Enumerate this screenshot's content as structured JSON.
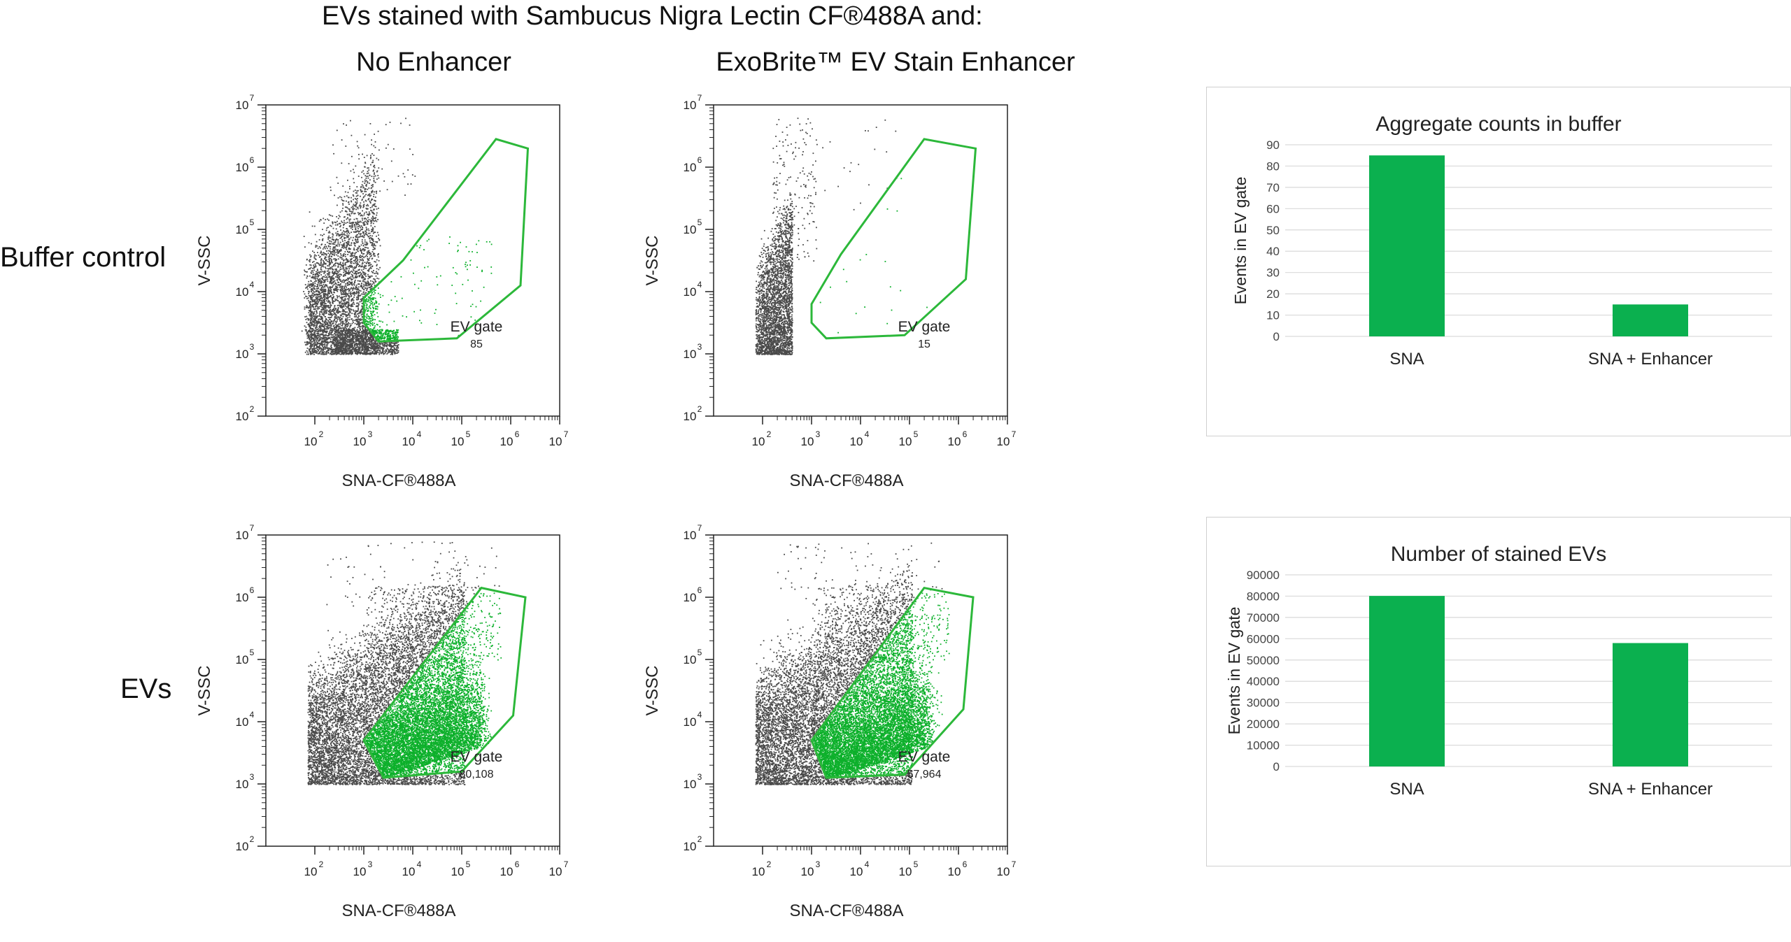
{
  "figure": {
    "title": "EVs stained with Sambucus Nigra Lectin CF®488A and:",
    "columns": [
      "No Enhancer",
      "ExoBrite™ EV Stain Enhancer"
    ],
    "rows": [
      "Buffer control",
      "EVs"
    ]
  },
  "colors": {
    "gate": "#2cb83a",
    "dots_gray": "#4a4a4a",
    "dots_green": "#0db02b",
    "bar": "#0bb04f",
    "grid": "#d9d9d9"
  },
  "chart_data": [
    {
      "type": "scatter",
      "id": "buffer-no-enhancer",
      "xlabel": "SNA-CF®488A",
      "ylabel": "V-SSC",
      "x_scale": "log",
      "y_scale": "log",
      "xlim": [
        10,
        10000000
      ],
      "ylim": [
        100,
        10000000
      ],
      "x_tick_exponents": [
        "2",
        "3",
        "4",
        "5",
        "6",
        "7"
      ],
      "y_tick_exponents": [
        "2",
        "3",
        "4",
        "5",
        "6",
        "7"
      ],
      "tick_base": "10",
      "gate_label": "EV gate",
      "gate_count": "85",
      "gate_polygon_log": [
        [
          3.0,
          3.5
        ],
        [
          3.3,
          3.2
        ],
        [
          4.9,
          3.25
        ],
        [
          6.2,
          4.1
        ],
        [
          6.35,
          6.3
        ],
        [
          5.7,
          6.45
        ],
        [
          3.8,
          4.5
        ],
        [
          3.0,
          3.9
        ]
      ]
    },
    {
      "type": "scatter",
      "id": "buffer-enhancer",
      "xlabel": "SNA-CF®488A",
      "ylabel": "V-SSC",
      "x_scale": "log",
      "y_scale": "log",
      "xlim": [
        10,
        10000000
      ],
      "ylim": [
        100,
        10000000
      ],
      "x_tick_exponents": [
        "2",
        "3",
        "4",
        "5",
        "6",
        "7"
      ],
      "y_tick_exponents": [
        "2",
        "3",
        "4",
        "5",
        "6",
        "7"
      ],
      "tick_base": "10",
      "gate_label": "EV gate",
      "gate_count": "15",
      "gate_polygon_log": [
        [
          3.0,
          3.5
        ],
        [
          3.3,
          3.25
        ],
        [
          4.9,
          3.3
        ],
        [
          6.15,
          4.2
        ],
        [
          6.35,
          6.3
        ],
        [
          5.3,
          6.45
        ],
        [
          3.6,
          4.6
        ],
        [
          3.0,
          3.8
        ]
      ]
    },
    {
      "type": "scatter",
      "id": "evs-no-enhancer",
      "xlabel": "SNA-CF®488A",
      "ylabel": "V-SSC",
      "x_scale": "log",
      "y_scale": "log",
      "xlim": [
        10,
        10000000
      ],
      "ylim": [
        100,
        10000000
      ],
      "x_tick_exponents": [
        "2",
        "3",
        "4",
        "5",
        "6",
        "7"
      ],
      "y_tick_exponents": [
        "2",
        "3",
        "4",
        "5",
        "6",
        "7"
      ],
      "tick_base": "10",
      "gate_label": "EV gate",
      "gate_count": "80,108",
      "gate_polygon_log": [
        [
          3.0,
          3.7
        ],
        [
          3.4,
          3.1
        ],
        [
          5.0,
          3.2
        ],
        [
          6.05,
          4.1
        ],
        [
          6.3,
          6.0
        ],
        [
          5.4,
          6.15
        ],
        [
          3.0,
          3.7
        ]
      ]
    },
    {
      "type": "scatter",
      "id": "evs-enhancer",
      "xlabel": "SNA-CF®488A",
      "ylabel": "V-SSC",
      "x_scale": "log",
      "y_scale": "log",
      "xlim": [
        10,
        10000000
      ],
      "ylim": [
        100,
        10000000
      ],
      "x_tick_exponents": [
        "2",
        "3",
        "4",
        "5",
        "6",
        "7"
      ],
      "y_tick_exponents": [
        "2",
        "3",
        "4",
        "5",
        "6",
        "7"
      ],
      "tick_base": "10",
      "gate_label": "EV gate",
      "gate_count": "57,964",
      "gate_polygon_log": [
        [
          3.0,
          3.7
        ],
        [
          3.3,
          3.1
        ],
        [
          4.9,
          3.15
        ],
        [
          6.1,
          4.2
        ],
        [
          6.3,
          6.0
        ],
        [
          5.3,
          6.15
        ],
        [
          3.0,
          3.7
        ]
      ]
    },
    {
      "type": "bar",
      "id": "aggregate-counts",
      "title": "Aggregate counts in buffer",
      "ylabel": "Events in EV gate",
      "categories": [
        "SNA",
        "SNA + Enhancer"
      ],
      "values": [
        85,
        15
      ],
      "ylim": [
        0,
        90
      ],
      "yticks": [
        "0",
        "10",
        "20",
        "30",
        "40",
        "50",
        "60",
        "70",
        "80",
        "90"
      ]
    },
    {
      "type": "bar",
      "id": "stained-evs",
      "title": "Number of stained EVs",
      "ylabel": "Events in EV gate",
      "categories": [
        "SNA",
        "SNA + Enhancer"
      ],
      "values": [
        80108,
        57964
      ],
      "ylim": [
        0,
        90000
      ],
      "yticks": [
        "0",
        "10000",
        "20000",
        "30000",
        "40000",
        "50000",
        "60000",
        "70000",
        "80000",
        "90000"
      ]
    }
  ]
}
